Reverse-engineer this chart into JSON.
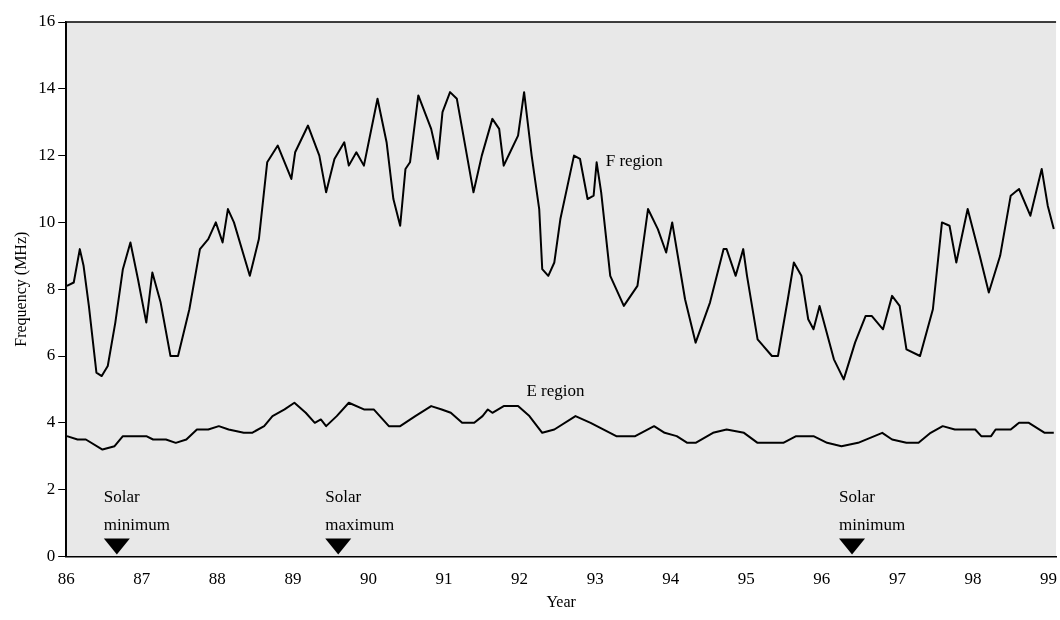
{
  "chart_data": {
    "type": "line",
    "xlabel": "Year",
    "ylabel": "Frequency (MHz)",
    "xlim": [
      86,
      99.1
    ],
    "xticks": [
      86,
      87,
      88,
      89,
      90,
      91,
      92,
      93,
      94,
      95,
      96,
      97,
      98,
      99
    ],
    "ylim": [
      0,
      16
    ],
    "yticks": [
      0,
      2,
      4,
      6,
      8,
      10,
      12,
      14,
      16
    ],
    "grid": false,
    "legend": false,
    "marker": "none",
    "line_style": "solid",
    "series": [
      {
        "name": "F region",
        "color": "#000000",
        "x": [
          86.01,
          86.1,
          86.18,
          86.23,
          86.3,
          86.4,
          86.47,
          86.55,
          86.65,
          86.75,
          86.85,
          86.95,
          87.06,
          87.14,
          87.25,
          87.38,
          87.48,
          87.63,
          87.77,
          87.88,
          87.98,
          88.07,
          88.14,
          88.22,
          88.43,
          88.55,
          88.66,
          88.8,
          88.98,
          89.03,
          89.2,
          89.35,
          89.44,
          89.55,
          89.68,
          89.74,
          89.84,
          89.94,
          90.12,
          90.24,
          90.33,
          90.42,
          90.49,
          90.55,
          90.66,
          90.83,
          90.92,
          90.98,
          91.08,
          91.17,
          91.39,
          91.5,
          91.64,
          91.73,
          91.79,
          91.98,
          92.06,
          92.16,
          92.26,
          92.3,
          92.38,
          92.46,
          92.54,
          92.72,
          92.8,
          92.9,
          92.98,
          93.02,
          93.08,
          93.2,
          93.38,
          93.56,
          93.7,
          93.83,
          93.94,
          94.02,
          94.19,
          94.33,
          94.52,
          94.7,
          94.74,
          94.86,
          94.96,
          95.01,
          95.15,
          95.34,
          95.42,
          95.55,
          95.63,
          95.73,
          95.82,
          95.89,
          95.97,
          96.16,
          96.29,
          96.44,
          96.58,
          96.66,
          96.81,
          96.93,
          97.03,
          97.12,
          97.3,
          97.47,
          97.59,
          97.69,
          97.78,
          97.93,
          98.09,
          98.21,
          98.36,
          98.5,
          98.61,
          98.76,
          98.91,
          98.99,
          99.07
        ],
        "values": [
          8.1,
          8.2,
          9.2,
          8.7,
          7.5,
          5.5,
          5.4,
          5.7,
          7.0,
          8.6,
          9.4,
          8.3,
          7.0,
          8.5,
          7.6,
          6.0,
          6.0,
          7.4,
          9.2,
          9.5,
          10.0,
          9.4,
          10.4,
          10.0,
          8.4,
          9.5,
          11.8,
          12.3,
          11.3,
          12.1,
          12.9,
          12.0,
          10.9,
          11.9,
          12.4,
          11.7,
          12.1,
          11.7,
          13.7,
          12.4,
          10.7,
          9.9,
          11.6,
          11.8,
          13.8,
          12.8,
          11.9,
          13.3,
          13.9,
          13.7,
          10.9,
          12.0,
          13.1,
          12.8,
          11.7,
          12.6,
          13.9,
          12.0,
          10.4,
          8.6,
          8.4,
          8.8,
          10.1,
          12.0,
          11.9,
          10.7,
          10.8,
          11.8,
          10.9,
          8.4,
          7.5,
          8.1,
          10.4,
          9.8,
          9.1,
          10.0,
          7.7,
          6.4,
          7.6,
          9.2,
          9.2,
          8.4,
          9.2,
          8.4,
          6.5,
          6.0,
          6.0,
          7.7,
          8.8,
          8.4,
          7.1,
          6.8,
          7.5,
          5.9,
          5.3,
          6.4,
          7.2,
          7.2,
          6.8,
          7.8,
          7.5,
          6.2,
          6.0,
          7.4,
          10.0,
          9.9,
          8.8,
          10.4,
          9.0,
          7.9,
          9.0,
          10.8,
          11.0,
          10.2,
          11.6,
          10.5,
          9.8
        ]
      },
      {
        "name": "E region",
        "color": "#000000",
        "x": [
          86.01,
          86.15,
          86.26,
          86.48,
          86.64,
          86.75,
          87.06,
          87.15,
          87.32,
          87.45,
          87.59,
          87.73,
          87.88,
          88.02,
          88.15,
          88.35,
          88.46,
          88.62,
          88.73,
          88.89,
          89.02,
          89.17,
          89.29,
          89.37,
          89.44,
          89.58,
          89.74,
          89.94,
          90.07,
          90.27,
          90.42,
          90.62,
          90.83,
          90.97,
          91.09,
          91.24,
          91.4,
          91.51,
          91.58,
          91.64,
          91.79,
          91.98,
          92.13,
          92.3,
          92.46,
          92.74,
          92.94,
          93.28,
          93.53,
          93.78,
          93.92,
          94.08,
          94.22,
          94.33,
          94.56,
          94.74,
          94.97,
          95.15,
          95.49,
          95.66,
          95.89,
          96.07,
          96.26,
          96.48,
          96.8,
          96.93,
          97.12,
          97.28,
          97.44,
          97.6,
          97.76,
          98.03,
          98.11,
          98.24,
          98.3,
          98.5,
          98.61,
          98.74,
          98.95,
          99.07
        ],
        "values": [
          3.6,
          3.5,
          3.5,
          3.2,
          3.3,
          3.6,
          3.6,
          3.5,
          3.5,
          3.4,
          3.5,
          3.8,
          3.8,
          3.9,
          3.8,
          3.7,
          3.7,
          3.9,
          4.2,
          4.4,
          4.6,
          4.3,
          4.0,
          4.1,
          3.9,
          4.2,
          4.6,
          4.4,
          4.4,
          3.9,
          3.9,
          4.2,
          4.5,
          4.4,
          4.3,
          4.0,
          4.0,
          4.2,
          4.4,
          4.3,
          4.5,
          4.5,
          4.2,
          3.7,
          3.8,
          4.2,
          4.0,
          3.6,
          3.6,
          3.9,
          3.7,
          3.6,
          3.4,
          3.4,
          3.7,
          3.8,
          3.7,
          3.4,
          3.4,
          3.6,
          3.6,
          3.4,
          3.3,
          3.4,
          3.7,
          3.5,
          3.4,
          3.4,
          3.7,
          3.9,
          3.8,
          3.8,
          3.6,
          3.6,
          3.8,
          3.8,
          4.0,
          4.0,
          3.7,
          3.7
        ]
      }
    ],
    "annotations": [
      {
        "text": "Solar\nminimum",
        "x": 86.67,
        "y": 0.3
      },
      {
        "text": "Solar\nmaximum",
        "x": 89.6,
        "y": 0.3
      },
      {
        "text": "Solar\nminimum",
        "x": 96.4,
        "y": 0.3
      }
    ]
  }
}
